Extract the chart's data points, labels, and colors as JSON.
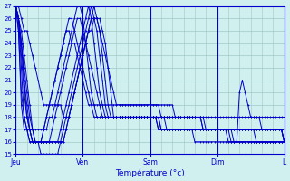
{
  "title": "",
  "xlabel": "Température (°c)",
  "bg_color": "#d0f0f0",
  "grid_color": "#a0c8c8",
  "line_color": "#0000cc",
  "marker": "+",
  "ylim": [
    15,
    27
  ],
  "yticks": [
    15,
    16,
    17,
    18,
    19,
    20,
    21,
    22,
    23,
    24,
    25,
    26,
    27
  ],
  "day_labels": [
    "Jeu",
    "Ven",
    "Sam",
    "Dim",
    "L"
  ],
  "day_positions": [
    0,
    0.25,
    0.5,
    0.75,
    1.0
  ],
  "n_points": 97,
  "series": [
    [
      27,
      27,
      26,
      25,
      25,
      24,
      23,
      22,
      21,
      20,
      19,
      19,
      19,
      19,
      19,
      19,
      19,
      18,
      18,
      18,
      19,
      20,
      21,
      22,
      23,
      24,
      25,
      26,
      26,
      26,
      25,
      24,
      23,
      22,
      21,
      20,
      19,
      19,
      19,
      19,
      19,
      19,
      19,
      19,
      19,
      19,
      19,
      19,
      19,
      19,
      19,
      19,
      19,
      19,
      19,
      19,
      19,
      18,
      18,
      18,
      18,
      18,
      18,
      18,
      18,
      18,
      18,
      18,
      18,
      18,
      18,
      18,
      18,
      18,
      18,
      18,
      18,
      18,
      18,
      18,
      18,
      18,
      18,
      18,
      18,
      18,
      18,
      18,
      18,
      18,
      18,
      18,
      18,
      18,
      18,
      18,
      18
    ],
    [
      27,
      26,
      25,
      23,
      21,
      19,
      17,
      16,
      16,
      16,
      16,
      16,
      16,
      17,
      18,
      19,
      20,
      21,
      22,
      23,
      24,
      25,
      26,
      26,
      25,
      24,
      23,
      22,
      21,
      20,
      19,
      18,
      18,
      18,
      18,
      18,
      18,
      18,
      18,
      18,
      18,
      18,
      18,
      18,
      18,
      18,
      18,
      18,
      18,
      18,
      18,
      18,
      18,
      18,
      18,
      18,
      18,
      18,
      18,
      18,
      18,
      18,
      18,
      18,
      18,
      18,
      18,
      17,
      17,
      17,
      17,
      17,
      17,
      17,
      17,
      17,
      17,
      17,
      17,
      17,
      17,
      17,
      17,
      17,
      17,
      17,
      17,
      17,
      17,
      17,
      17,
      17,
      17,
      17,
      17,
      17,
      16
    ],
    [
      27,
      26,
      24,
      22,
      20,
      18,
      17,
      16,
      16,
      16,
      16,
      16,
      16,
      16,
      16,
      16,
      17,
      18,
      19,
      20,
      21,
      22,
      23,
      24,
      25,
      26,
      27,
      26,
      24,
      22,
      20,
      19,
      18,
      18,
      18,
      18,
      18,
      18,
      18,
      18,
      18,
      18,
      18,
      18,
      18,
      18,
      18,
      18,
      18,
      18,
      18,
      18,
      17,
      17,
      17,
      17,
      17,
      17,
      17,
      17,
      17,
      17,
      17,
      17,
      17,
      17,
      17,
      17,
      17,
      17,
      17,
      17,
      17,
      17,
      17,
      17,
      17,
      17,
      16,
      16,
      16,
      16,
      16,
      16,
      16,
      16,
      16,
      16,
      16,
      16,
      16,
      16,
      16,
      16,
      16,
      16,
      16
    ],
    [
      27,
      26,
      24,
      21,
      19,
      17,
      16,
      16,
      16,
      16,
      16,
      16,
      16,
      16,
      16,
      16,
      16,
      17,
      18,
      19,
      20,
      21,
      22,
      23,
      24,
      25,
      26,
      27,
      26,
      25,
      23,
      21,
      19,
      18,
      18,
      18,
      18,
      18,
      18,
      18,
      18,
      18,
      18,
      18,
      18,
      18,
      18,
      18,
      18,
      18,
      18,
      17,
      17,
      17,
      17,
      17,
      17,
      17,
      17,
      17,
      17,
      17,
      17,
      17,
      17,
      17,
      17,
      17,
      17,
      17,
      17,
      17,
      17,
      17,
      17,
      17,
      17,
      16,
      16,
      16,
      16,
      16,
      16,
      16,
      16,
      16,
      16,
      16,
      16,
      16,
      16,
      16,
      16,
      16,
      16,
      16,
      16
    ],
    [
      27,
      26,
      24,
      21,
      18,
      17,
      16,
      16,
      16,
      16,
      16,
      16,
      16,
      16,
      16,
      16,
      16,
      16,
      17,
      18,
      19,
      20,
      21,
      22,
      23,
      24,
      25,
      26,
      27,
      26,
      25,
      23,
      21,
      19,
      18,
      18,
      18,
      18,
      18,
      18,
      18,
      18,
      18,
      18,
      18,
      18,
      18,
      18,
      18,
      18,
      18,
      18,
      17,
      17,
      17,
      17,
      17,
      17,
      17,
      17,
      17,
      17,
      17,
      17,
      17,
      17,
      17,
      17,
      17,
      17,
      17,
      17,
      17,
      17,
      17,
      17,
      16,
      16,
      16,
      16,
      16,
      16,
      16,
      16,
      16,
      16,
      16,
      16,
      16,
      16,
      16,
      16,
      16,
      16,
      16,
      16,
      16
    ],
    [
      27,
      26,
      23,
      20,
      18,
      17,
      16,
      16,
      16,
      15,
      15,
      15,
      15,
      15,
      15,
      15,
      16,
      16,
      17,
      18,
      19,
      20,
      21,
      22,
      23,
      24,
      25,
      25,
      26,
      26,
      26,
      25,
      24,
      22,
      20,
      18,
      18,
      18,
      18,
      18,
      18,
      18,
      18,
      18,
      18,
      18,
      18,
      18,
      18,
      18,
      18,
      18,
      18,
      18,
      17,
      17,
      17,
      17,
      17,
      17,
      17,
      17,
      17,
      17,
      16,
      16,
      16,
      16,
      16,
      16,
      16,
      16,
      16,
      16,
      16,
      16,
      16,
      16,
      16,
      16,
      20,
      21,
      20,
      19,
      18,
      18,
      18,
      18,
      17,
      17,
      17,
      17,
      17,
      17,
      17,
      17,
      16
    ],
    [
      27,
      25,
      19,
      17,
      17,
      16,
      16,
      16,
      16,
      16,
      17,
      18,
      19,
      20,
      21,
      22,
      23,
      24,
      25,
      25,
      24,
      24,
      23,
      22,
      21,
      20,
      19,
      19,
      19,
      19,
      19,
      19,
      19,
      19,
      19,
      19,
      19,
      19,
      19,
      19,
      19,
      19,
      19,
      19,
      19,
      19,
      19,
      19,
      19,
      19,
      19,
      19,
      18,
      18,
      18,
      18,
      18,
      18,
      18,
      18,
      18,
      18,
      18,
      18,
      18,
      18,
      18,
      18,
      17,
      17,
      17,
      17,
      17,
      17,
      17,
      17,
      17,
      17,
      17,
      17,
      17,
      17,
      17,
      17,
      17,
      17,
      16,
      16,
      16,
      16,
      16,
      16,
      16,
      16,
      16,
      16,
      16
    ],
    [
      27,
      25,
      20,
      18,
      17,
      17,
      17,
      17,
      17,
      17,
      17,
      17,
      18,
      18,
      19,
      20,
      21,
      22,
      23,
      24,
      25,
      26,
      27,
      27,
      26,
      24,
      22,
      20,
      19,
      18,
      18,
      18,
      18,
      18,
      18,
      18,
      18,
      18,
      18,
      18,
      18,
      18,
      18,
      18,
      18,
      18,
      18,
      18,
      18,
      18,
      18,
      17,
      17,
      17,
      17,
      17,
      17,
      17,
      17,
      17,
      17,
      17,
      17,
      17,
      17,
      17,
      17,
      17,
      17,
      17,
      17,
      17,
      17,
      17,
      17,
      17,
      17,
      17,
      17,
      17,
      17,
      17,
      17,
      17,
      17,
      17,
      17,
      17,
      17,
      17,
      17,
      17,
      17,
      17,
      17,
      17,
      16
    ],
    [
      27,
      26,
      22,
      18,
      17,
      16,
      16,
      16,
      16,
      16,
      17,
      18,
      19,
      20,
      21,
      22,
      23,
      24,
      25,
      26,
      26,
      25,
      24,
      23,
      22,
      21,
      20,
      19,
      18,
      18,
      18,
      18,
      18,
      18,
      18,
      18,
      18,
      18,
      18,
      18,
      18,
      18,
      18,
      18,
      18,
      18,
      18,
      18,
      18,
      18,
      18,
      18,
      18,
      18,
      18,
      18,
      18,
      18,
      18,
      18,
      18,
      18,
      18,
      18,
      18,
      18,
      18,
      17,
      17,
      17,
      17,
      17,
      17,
      17,
      17,
      17,
      17,
      17,
      17,
      17,
      17,
      17,
      17,
      17,
      17,
      17,
      17,
      17,
      17,
      17,
      17,
      17,
      17,
      17,
      17,
      17,
      16
    ]
  ]
}
